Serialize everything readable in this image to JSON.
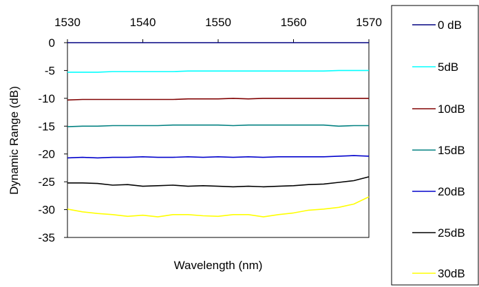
{
  "chart_data": {
    "type": "line",
    "title": "",
    "xlabel": "Wavelength (nm)",
    "ylabel": "Dynamic Range (dB)",
    "xlim": [
      1530,
      1570
    ],
    "ylim": [
      -35,
      0
    ],
    "x_ticks": [
      "1530",
      "1540",
      "1550",
      "1560",
      "1570"
    ],
    "y_ticks": [
      "0",
      "-5",
      "-10",
      "-15",
      "-20",
      "-25",
      "-30",
      "-35"
    ],
    "x_axis_position": "top",
    "grid": false,
    "legend_position": "right",
    "x": [
      1530,
      1532,
      1534,
      1536,
      1538,
      1540,
      1542,
      1544,
      1546,
      1548,
      1550,
      1552,
      1554,
      1556,
      1558,
      1560,
      1562,
      1564,
      1566,
      1568,
      1570
    ],
    "series": [
      {
        "name": "0 dB",
        "color": "#000080",
        "values": [
          0,
          0,
          0,
          0,
          0,
          0,
          0,
          0,
          0,
          0,
          0,
          0,
          0,
          0,
          0,
          0,
          0,
          0,
          0,
          0,
          0
        ]
      },
      {
        "name": "5dB",
        "color": "#00FFFF",
        "values": [
          -5.3,
          -5.3,
          -5.3,
          -5.2,
          -5.2,
          -5.2,
          -5.2,
          -5.2,
          -5.1,
          -5.1,
          -5.1,
          -5.1,
          -5.1,
          -5.1,
          -5.1,
          -5.1,
          -5.1,
          -5.1,
          -5.0,
          -5.0,
          -5.0
        ]
      },
      {
        "name": "10dB",
        "color": "#800000",
        "values": [
          -10.3,
          -10.2,
          -10.2,
          -10.2,
          -10.2,
          -10.2,
          -10.2,
          -10.2,
          -10.1,
          -10.1,
          -10.1,
          -10.0,
          -10.1,
          -10.0,
          -10.0,
          -10.0,
          -10.0,
          -10.0,
          -10.0,
          -10.0,
          -10.0
        ]
      },
      {
        "name": "15dB",
        "color": "#008080",
        "values": [
          -15.1,
          -15.0,
          -15.0,
          -14.9,
          -14.9,
          -14.9,
          -14.9,
          -14.8,
          -14.8,
          -14.8,
          -14.8,
          -14.9,
          -14.8,
          -14.8,
          -14.8,
          -14.8,
          -14.8,
          -14.8,
          -15.0,
          -14.9,
          -14.9
        ]
      },
      {
        "name": "20dB",
        "color": "#0000CC",
        "values": [
          -20.7,
          -20.6,
          -20.7,
          -20.6,
          -20.6,
          -20.5,
          -20.6,
          -20.6,
          -20.5,
          -20.6,
          -20.5,
          -20.6,
          -20.5,
          -20.6,
          -20.5,
          -20.5,
          -20.5,
          -20.5,
          -20.4,
          -20.3,
          -20.4
        ]
      },
      {
        "name": "25dB",
        "color": "#000000",
        "values": [
          -25.2,
          -25.2,
          -25.3,
          -25.6,
          -25.5,
          -25.8,
          -25.7,
          -25.6,
          -25.8,
          -25.7,
          -25.8,
          -25.9,
          -25.8,
          -25.9,
          -25.8,
          -25.7,
          -25.5,
          -25.4,
          -25.1,
          -24.8,
          -24.1
        ]
      },
      {
        "name": "30dB",
        "color": "#FFFF00",
        "values": [
          -29.9,
          -30.4,
          -30.7,
          -30.9,
          -31.2,
          -31.0,
          -31.3,
          -30.9,
          -30.9,
          -31.1,
          -31.2,
          -30.9,
          -30.9,
          -31.3,
          -30.9,
          -30.6,
          -30.1,
          -29.9,
          -29.6,
          -29.0,
          -27.7
        ]
      }
    ]
  }
}
